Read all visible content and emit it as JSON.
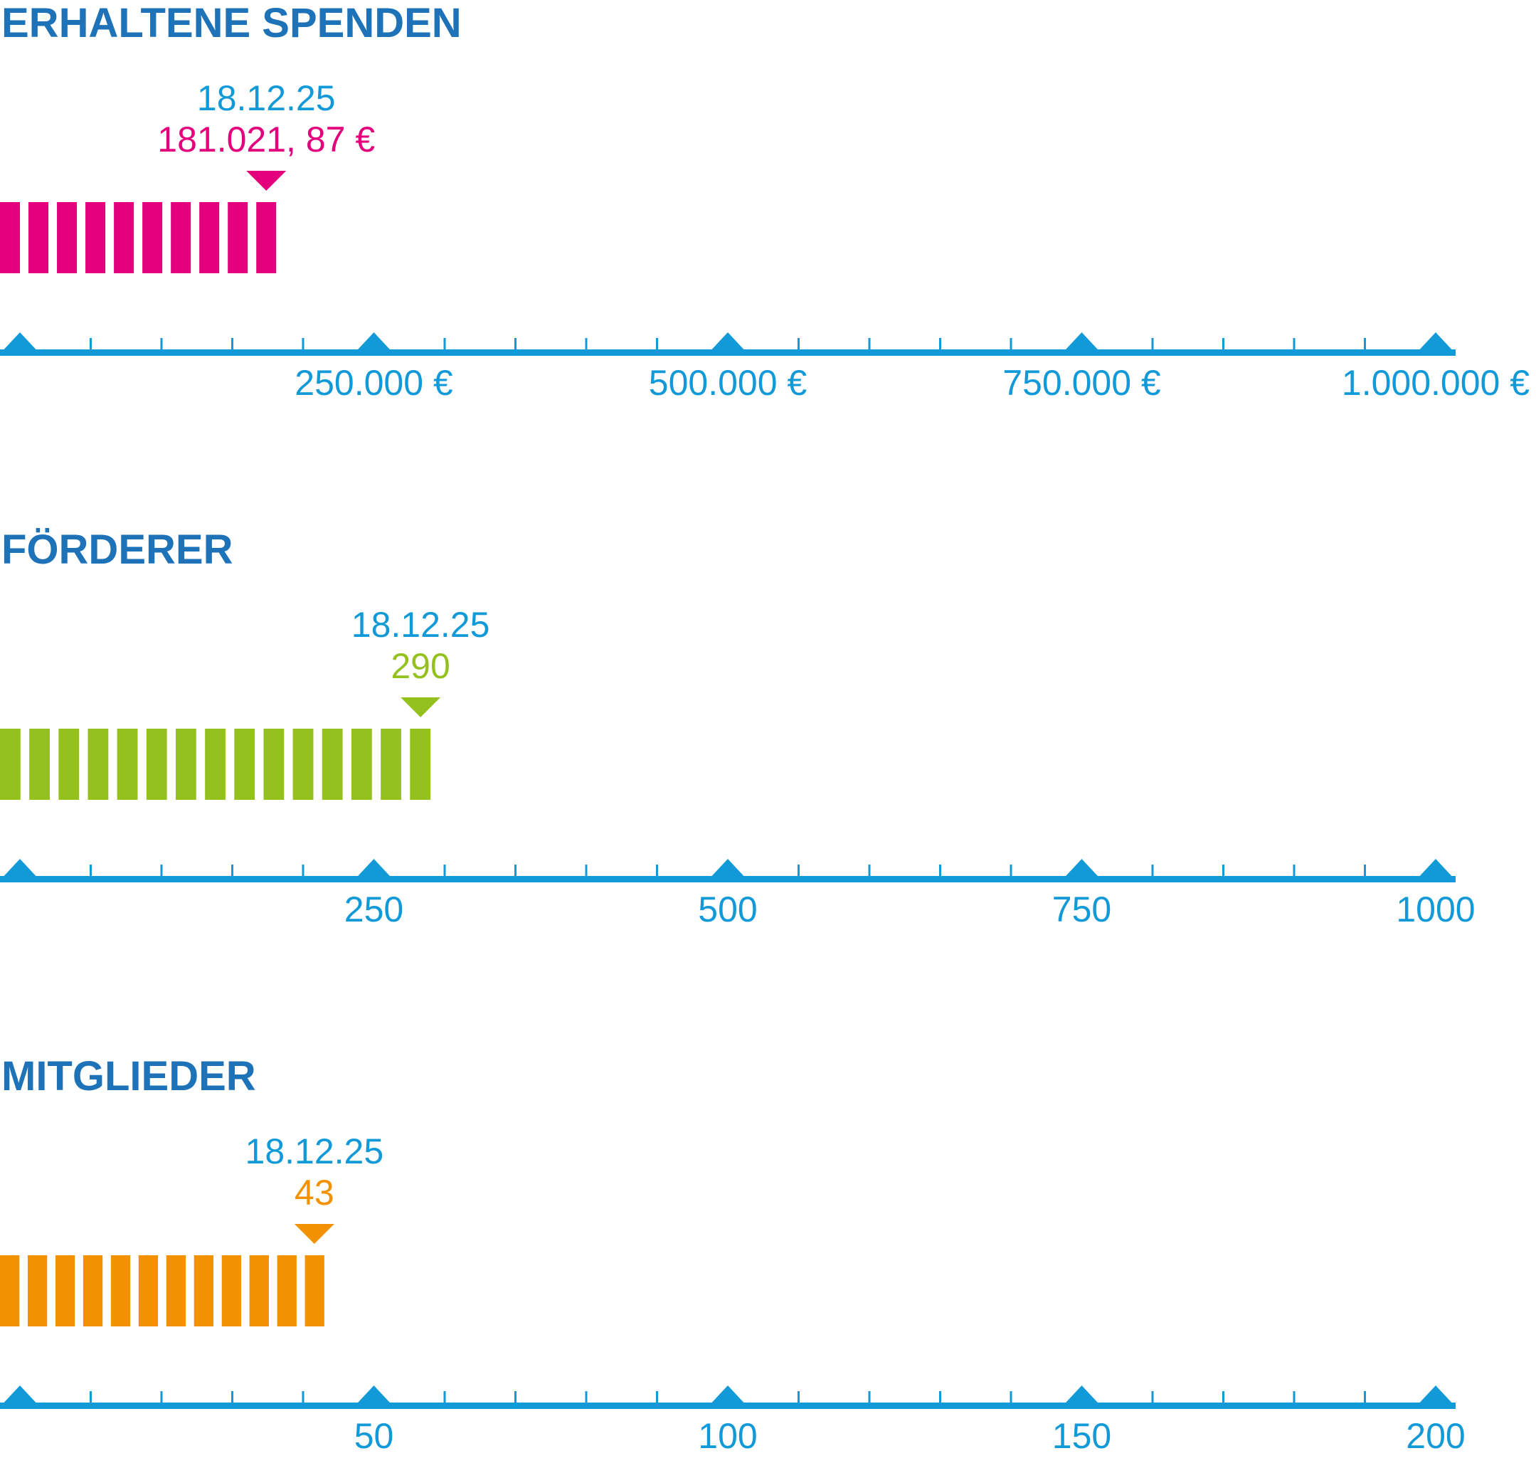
{
  "axis_color": "#129ad8",
  "title_color": "#1d72b8",
  "chart_data": [
    {
      "type": "bar",
      "title": "ERHALTENE SPENDEN",
      "date": "18.12.25",
      "value": 181021.87,
      "value_label": "181.021, 87 €",
      "color": "#e4007c",
      "xlim": [
        0,
        1000000
      ],
      "major_ticks": [
        0,
        250000,
        500000,
        750000,
        1000000
      ],
      "tick_labels": [
        "",
        "250.000 €",
        "500.000 €",
        "750.000 €",
        "1.000.000 €"
      ],
      "minor_step": 50000,
      "segment_count": 10
    },
    {
      "type": "bar",
      "title": "FÖRDERER",
      "date": "18.12.25",
      "value": 290,
      "value_label": "290",
      "color": "#95c11f",
      "xlim": [
        0,
        1000
      ],
      "major_ticks": [
        0,
        250,
        500,
        750,
        1000
      ],
      "tick_labels": [
        "",
        "250",
        "500",
        "750",
        "1000"
      ],
      "minor_step": 50,
      "segment_count": 15
    },
    {
      "type": "bar",
      "title": "MITGLIEDER",
      "date": "18.12.25",
      "value": 43,
      "value_label": "43",
      "color": "#f39200",
      "xlim": [
        0,
        200
      ],
      "major_ticks": [
        0,
        50,
        100,
        150,
        200
      ],
      "tick_labels": [
        "",
        "50",
        "100",
        "150",
        "200"
      ],
      "minor_step": 10,
      "segment_count": 12
    }
  ]
}
